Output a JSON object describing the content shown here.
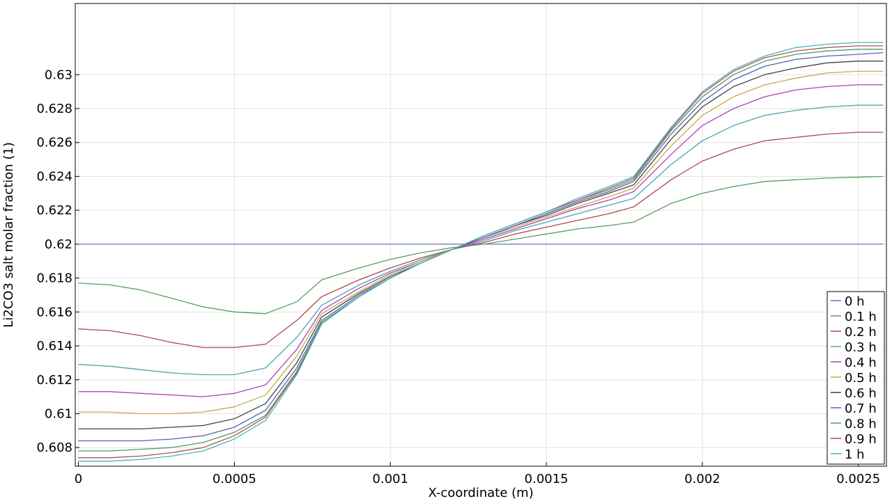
{
  "chart_data": {
    "type": "line",
    "title": "",
    "xlabel": "X-coordinate (m)",
    "ylabel": "Li2CO3 salt molar fraction (1)",
    "xlim": [
      -1e-05,
      0.00259
    ],
    "ylim": [
      0.6069,
      0.6342
    ],
    "x_ticks": [
      0,
      0.0005,
      0.001,
      0.0015,
      0.002,
      0.0025
    ],
    "x_tick_labels": [
      "0",
      "0.0005",
      "0.001",
      "0.0015",
      "0.002",
      "0.0025"
    ],
    "y_ticks": [
      0.608,
      0.61,
      0.612,
      0.614,
      0.616,
      0.618,
      0.62,
      0.622,
      0.624,
      0.626,
      0.628,
      0.63
    ],
    "y_tick_labels": [
      "0.608",
      "0.61",
      "0.612",
      "0.614",
      "0.616",
      "0.618",
      "0.62",
      "0.622",
      "0.624",
      "0.626",
      "0.628",
      "0.63"
    ],
    "grid": true,
    "legend_position": "bottom-right",
    "x": [
      0,
      0.0001,
      0.0002,
      0.0003,
      0.0004,
      0.0005,
      0.0006,
      0.0007,
      0.00078,
      0.0009,
      0.001,
      0.0011,
      0.0012,
      0.0013,
      0.0014,
      0.0015,
      0.0016,
      0.0017,
      0.00178,
      0.0019,
      0.002,
      0.0021,
      0.0022,
      0.0023,
      0.0024,
      0.0025,
      0.00258
    ],
    "series": [
      {
        "name": "0 h",
        "color": "#5f73c8",
        "values": [
          0.62,
          0.62,
          0.62,
          0.62,
          0.62,
          0.62,
          0.62,
          0.62,
          0.62,
          0.62,
          0.62,
          0.62,
          0.62,
          0.62,
          0.62,
          0.62,
          0.62,
          0.62,
          0.62,
          0.62,
          0.62,
          0.62,
          0.62,
          0.62,
          0.62,
          0.62,
          0.62
        ]
      },
      {
        "name": "0.1 h",
        "color": "#5a9c5a",
        "values": [
          0.6177,
          0.6176,
          0.6173,
          0.6168,
          0.6163,
          0.616,
          0.6159,
          0.6166,
          0.6179,
          0.6186,
          0.6191,
          0.6195,
          0.6198,
          0.62,
          0.6203,
          0.6206,
          0.6209,
          0.6211,
          0.6213,
          0.6224,
          0.623,
          0.6234,
          0.6237,
          0.6238,
          0.6239,
          0.62395,
          0.624
        ]
      },
      {
        "name": "0.2 h",
        "color": "#b04848",
        "values": [
          0.615,
          0.6149,
          0.6146,
          0.6142,
          0.6139,
          0.6139,
          0.6141,
          0.6155,
          0.6169,
          0.6179,
          0.6186,
          0.6192,
          0.6197,
          0.6201,
          0.6206,
          0.621,
          0.6214,
          0.6218,
          0.6222,
          0.6238,
          0.6249,
          0.6256,
          0.6261,
          0.6263,
          0.6265,
          0.6266,
          0.6266
        ]
      },
      {
        "name": "0.3 h",
        "color": "#4aa6ac",
        "values": [
          0.6129,
          0.6128,
          0.6126,
          0.6124,
          0.6123,
          0.6123,
          0.6127,
          0.6145,
          0.6164,
          0.6176,
          0.6184,
          0.6191,
          0.6197,
          0.6202,
          0.6208,
          0.6213,
          0.6218,
          0.6223,
          0.6227,
          0.6247,
          0.6261,
          0.627,
          0.6276,
          0.6279,
          0.6281,
          0.6282,
          0.6282
        ]
      },
      {
        "name": "0.4 h",
        "color": "#b040b8",
        "values": [
          0.6113,
          0.6113,
          0.6112,
          0.6111,
          0.611,
          0.6112,
          0.6117,
          0.6138,
          0.6161,
          0.6174,
          0.6183,
          0.619,
          0.6197,
          0.6203,
          0.6209,
          0.6215,
          0.6221,
          0.6226,
          0.6231,
          0.6253,
          0.627,
          0.628,
          0.6287,
          0.6291,
          0.6293,
          0.6294,
          0.6294
        ]
      },
      {
        "name": "0.5 h",
        "color": "#c8a848",
        "values": [
          0.6101,
          0.6101,
          0.61,
          0.61,
          0.6101,
          0.6104,
          0.6111,
          0.6134,
          0.6159,
          0.6172,
          0.6182,
          0.619,
          0.6197,
          0.6204,
          0.621,
          0.6216,
          0.6222,
          0.6228,
          0.6233,
          0.6258,
          0.6276,
          0.6287,
          0.6294,
          0.6298,
          0.6301,
          0.6302,
          0.6302
        ]
      },
      {
        "name": "0.6 h",
        "color": "#404048",
        "values": [
          0.6091,
          0.6091,
          0.6091,
          0.6092,
          0.6093,
          0.6097,
          0.6106,
          0.613,
          0.6157,
          0.6171,
          0.6181,
          0.6189,
          0.6197,
          0.6204,
          0.6211,
          0.6217,
          0.6224,
          0.623,
          0.6235,
          0.6262,
          0.6281,
          0.6293,
          0.63,
          0.6304,
          0.6307,
          0.6308,
          0.6308
        ]
      },
      {
        "name": "0.7 h",
        "color": "#5c60b0",
        "values": [
          0.6084,
          0.6084,
          0.6084,
          0.6085,
          0.6087,
          0.6092,
          0.6102,
          0.6127,
          0.6155,
          0.617,
          0.618,
          0.6189,
          0.6197,
          0.6204,
          0.6211,
          0.6218,
          0.6225,
          0.6231,
          0.6237,
          0.6265,
          0.6284,
          0.6297,
          0.6305,
          0.6309,
          0.6311,
          0.6312,
          0.6313
        ]
      },
      {
        "name": "0.8 h",
        "color": "#4e9a68",
        "values": [
          0.6078,
          0.6078,
          0.6079,
          0.608,
          0.6083,
          0.6089,
          0.6099,
          0.6125,
          0.6154,
          0.6169,
          0.618,
          0.6189,
          0.6197,
          0.6205,
          0.6212,
          0.6219,
          0.6226,
          0.6232,
          0.6238,
          0.6267,
          0.6287,
          0.63,
          0.6308,
          0.6312,
          0.6314,
          0.6315,
          0.6315
        ]
      },
      {
        "name": "0.9 h",
        "color": "#b05050",
        "values": [
          0.6074,
          0.6074,
          0.6075,
          0.6077,
          0.608,
          0.6087,
          0.6098,
          0.6124,
          0.6153,
          0.6169,
          0.618,
          0.6189,
          0.6197,
          0.6205,
          0.6212,
          0.6219,
          0.6226,
          0.6233,
          0.6239,
          0.6268,
          0.6289,
          0.6302,
          0.631,
          0.6314,
          0.6316,
          0.6317,
          0.6317
        ]
      },
      {
        "name": "1 h",
        "color": "#40b8c0",
        "values": [
          0.6072,
          0.6072,
          0.6073,
          0.6075,
          0.6078,
          0.6085,
          0.6096,
          0.6123,
          0.6153,
          0.6169,
          0.618,
          0.6189,
          0.6197,
          0.6205,
          0.6212,
          0.6219,
          0.6227,
          0.6234,
          0.624,
          0.6269,
          0.629,
          0.6303,
          0.6311,
          0.6316,
          0.6318,
          0.6319,
          0.6319
        ]
      }
    ]
  }
}
